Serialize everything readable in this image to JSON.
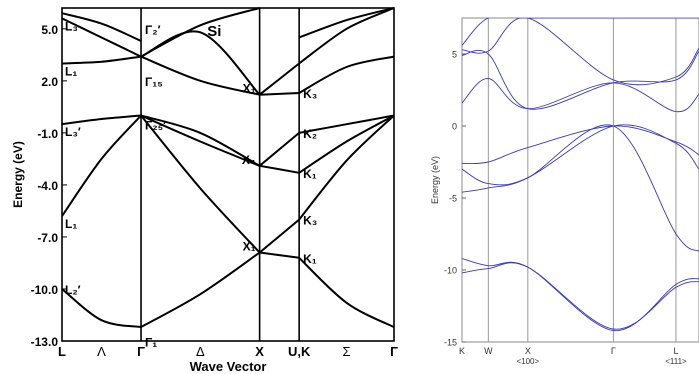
{
  "chart_data": [
    {
      "type": "line",
      "title": "Si",
      "xlabel": "Wave Vector",
      "ylabel": "Energy (eV)",
      "ylim": [
        -13.0,
        6.2
      ],
      "yticks": [
        "5.0",
        "2.0",
        "-1.0",
        "-4.0",
        "-7.0",
        "-10.0",
        "-13.0"
      ],
      "ytick_values": [
        5.0,
        2.0,
        -1.0,
        -4.0,
        -7.0,
        -10.0,
        -13.0
      ],
      "k_points": [
        "L",
        "Λ",
        "Γ",
        "Δ",
        "X",
        "U,K",
        "Σ",
        "Γ"
      ],
      "k_positions": [
        0.0,
        0.5,
        1.0,
        1.75,
        2.5,
        3.0,
        3.6,
        4.2
      ],
      "vertical_lines": [
        1.0,
        2.5,
        3.0
      ],
      "grid": false,
      "annotations": [
        {
          "text": "L₃",
          "x": 0.0,
          "y": 5.6
        },
        {
          "text": "L₁",
          "x": 0.0,
          "y": 3.0
        },
        {
          "text": "L₃′",
          "x": 0.0,
          "y": -0.5
        },
        {
          "text": "L₁",
          "x": 0.0,
          "y": -5.8
        },
        {
          "text": "L₂′",
          "x": 0.0,
          "y": -9.6
        },
        {
          "text": "Γ₂′",
          "x": 1.0,
          "y": 5.5
        },
        {
          "text": "Γ₁₅",
          "x": 1.0,
          "y": 2.5
        },
        {
          "text": "Γ₂₅′",
          "x": 1.0,
          "y": 0.0
        },
        {
          "text": "Γ₁",
          "x": 1.0,
          "y": -12.5
        },
        {
          "text": "X₁",
          "x": 2.5,
          "y": 1.2
        },
        {
          "text": "X₄",
          "x": 2.5,
          "y": -2.9
        },
        {
          "text": "X₁",
          "x": 2.5,
          "y": -7.9
        },
        {
          "text": "K₃",
          "x": 3.0,
          "y": 1.3
        },
        {
          "text": "K₂",
          "x": 3.0,
          "y": -1.0
        },
        {
          "text": "K₁",
          "x": 3.0,
          "y": -3.3
        },
        {
          "text": "K₃",
          "x": 3.0,
          "y": -6.0
        },
        {
          "text": "K₁",
          "x": 3.0,
          "y": -8.2
        }
      ],
      "series": [
        {
          "x": [
            0,
            0.5,
            1.0
          ],
          "y": [
            -10.0,
            -11.8,
            -12.2
          ]
        },
        {
          "x": [
            1.0,
            1.75,
            2.5
          ],
          "y": [
            -12.2,
            -10.3,
            -7.9
          ]
        },
        {
          "x": [
            2.5,
            3.0
          ],
          "y": [
            -7.9,
            -8.2
          ]
        },
        {
          "x": [
            3.0,
            3.6,
            4.2
          ],
          "y": [
            -8.2,
            -10.8,
            -12.2
          ]
        },
        {
          "x": [
            0,
            0.5,
            1.0
          ],
          "y": [
            -5.8,
            -2.5,
            0.0
          ]
        },
        {
          "x": [
            1.0,
            1.75,
            2.5
          ],
          "y": [
            0.0,
            -4.2,
            -7.9
          ]
        },
        {
          "x": [
            2.5,
            3.0
          ],
          "y": [
            -7.9,
            -6.0
          ]
        },
        {
          "x": [
            3.0,
            3.6,
            4.2
          ],
          "y": [
            -6.0,
            -2.6,
            0.0
          ]
        },
        {
          "x": [
            0,
            0.5,
            1.0
          ],
          "y": [
            -0.5,
            -0.2,
            0.0
          ]
        },
        {
          "x": [
            1.0,
            1.75,
            2.5
          ],
          "y": [
            0.0,
            -1.5,
            -2.9
          ]
        },
        {
          "x": [
            2.5,
            3.0
          ],
          "y": [
            -2.9,
            -3.3
          ]
        },
        {
          "x": [
            3.0,
            3.6,
            4.2
          ],
          "y": [
            -3.3,
            -1.5,
            0.0
          ]
        },
        {
          "x": [
            1.0,
            1.75,
            2.5
          ],
          "y": [
            0.0,
            -1.0,
            -2.9
          ]
        },
        {
          "x": [
            2.5,
            3.0
          ],
          "y": [
            -2.9,
            -1.0
          ]
        },
        {
          "x": [
            3.0,
            3.6,
            4.2
          ],
          "y": [
            -1.0,
            -0.5,
            0.0
          ]
        },
        {
          "x": [
            0,
            0.5,
            1.0
          ],
          "y": [
            3.0,
            3.1,
            3.4
          ]
        },
        {
          "x": [
            1.0,
            1.75,
            2.5
          ],
          "y": [
            3.4,
            2.0,
            1.2
          ]
        },
        {
          "x": [
            2.5,
            3.0
          ],
          "y": [
            1.2,
            1.3
          ]
        },
        {
          "x": [
            3.0,
            3.6,
            4.2
          ],
          "y": [
            1.3,
            2.8,
            3.4
          ]
        },
        {
          "x": [
            0,
            0.5,
            1.0
          ],
          "y": [
            5.6,
            4.5,
            3.4
          ]
        },
        {
          "x": [
            1.0,
            1.75,
            2.5
          ],
          "y": [
            3.4,
            4.8,
            1.2
          ]
        },
        {
          "x": [
            2.5,
            3.0
          ],
          "y": [
            1.2,
            3.0
          ]
        },
        {
          "x": [
            3.0,
            3.6,
            4.2
          ],
          "y": [
            3.0,
            5.0,
            6.2
          ]
        },
        {
          "x": [
            1.0,
            1.75,
            2.5
          ],
          "y": [
            3.4,
            5.2,
            6.2
          ]
        },
        {
          "x": [
            3.0,
            3.6,
            4.2
          ],
          "y": [
            4.5,
            5.5,
            6.2
          ]
        },
        {
          "x": [
            0,
            0.5,
            1.0
          ],
          "y": [
            5.9,
            5.3,
            4.3
          ]
        }
      ]
    },
    {
      "type": "line",
      "title": "",
      "xlabel": "",
      "ylabel": "Energy (eV)",
      "ylim": [
        -15,
        7.5
      ],
      "yticks": [
        "5",
        "0",
        "-5",
        "-10",
        "-15"
      ],
      "ytick_values": [
        5,
        0,
        -5,
        -10,
        -15
      ],
      "k_points": [
        "K",
        "W",
        "X",
        "Γ",
        "L"
      ],
      "k_sublabels": [
        "",
        "",
        "<100>",
        "",
        "<111>"
      ],
      "k_positions": [
        0.0,
        0.8,
        2.0,
        4.6,
        6.5
      ],
      "vertical_lines": [
        0.8,
        2.0,
        4.6,
        6.5
      ],
      "grid": false,
      "color": "#3a3ab0",
      "series": [
        {
          "x": [
            0,
            0.8,
            2.0,
            4.6,
            6.5,
            7.2
          ],
          "y": [
            -9.2,
            -9.7,
            -9.8,
            -14.2,
            -11.0,
            -10.6
          ]
        },
        {
          "x": [
            0,
            0.8,
            2.0,
            4.6,
            6.5,
            7.2
          ],
          "y": [
            -10.2,
            -9.9,
            -9.8,
            -14.1,
            -11.2,
            -10.8
          ]
        },
        {
          "x": [
            0,
            0.8,
            2.0,
            4.6,
            6.5,
            7.2
          ],
          "y": [
            -4.6,
            -4.3,
            -3.6,
            0.0,
            -7.5,
            -8.7
          ]
        },
        {
          "x": [
            0,
            0.8,
            2.0,
            4.6,
            6.5,
            7.2
          ],
          "y": [
            -3.0,
            -4.0,
            -3.6,
            0.0,
            -1.2,
            -3.0
          ]
        },
        {
          "x": [
            0,
            0.8,
            2.0,
            4.6,
            6.5,
            7.2
          ],
          "y": [
            -2.6,
            -2.5,
            -1.5,
            0.0,
            -1.1,
            -2.0
          ]
        },
        {
          "x": [
            0,
            0.8,
            2.0,
            4.6,
            6.5,
            7.2
          ],
          "y": [
            1.6,
            3.3,
            1.2,
            3.0,
            1.0,
            2.2
          ]
        },
        {
          "x": [
            0,
            0.8,
            2.0,
            4.6,
            6.5,
            7.2
          ],
          "y": [
            4.9,
            5.0,
            1.2,
            3.0,
            3.2,
            5.2
          ]
        },
        {
          "x": [
            0,
            0.8,
            2.0,
            4.6,
            6.5,
            7.2
          ],
          "y": [
            5.3,
            5.2,
            7.5,
            3.2,
            3.4,
            5.4
          ]
        },
        {
          "x": [
            0,
            0.8,
            2.0,
            4.6,
            6.5,
            7.2
          ],
          "y": [
            5.6,
            7.5,
            7.5,
            7.5,
            7.5,
            7.5
          ]
        }
      ]
    }
  ]
}
